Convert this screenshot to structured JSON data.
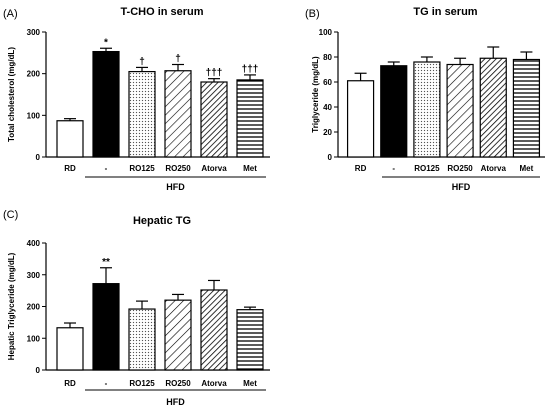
{
  "figure": {
    "group_label": "HFD"
  },
  "chart_data": [
    {
      "panel": "(A)",
      "type": "bar",
      "title": "T-CHO in serum",
      "xlabel": "",
      "ylabel": "Total cholesterol (mg/dL)",
      "categories": [
        "RD",
        "-",
        "RO125",
        "RO250",
        "Atorva",
        "Met"
      ],
      "values": [
        87,
        253,
        205,
        207,
        180,
        185
      ],
      "errors": [
        5,
        8,
        10,
        15,
        8,
        12
      ],
      "annotations": [
        "",
        "*",
        "†",
        "†",
        "†††",
        "†††"
      ],
      "ylim": [
        0,
        300
      ],
      "yticks": [
        0,
        100,
        200,
        300
      ],
      "patterns": [
        "white",
        "black",
        "dots",
        "diagonal",
        "hatch",
        "horizontal"
      ]
    },
    {
      "panel": "(B)",
      "type": "bar",
      "title": "TG in serum",
      "xlabel": "",
      "ylabel": "Triglyceride (mg/dL)",
      "categories": [
        "RD",
        "-",
        "RO125",
        "RO250",
        "Atorva",
        "Met"
      ],
      "values": [
        61,
        73,
        76,
        74,
        79,
        78
      ],
      "errors": [
        6,
        3,
        4,
        5,
        9,
        6
      ],
      "annotations": [
        "",
        "",
        "",
        "",
        "",
        ""
      ],
      "ylim": [
        0,
        100
      ],
      "yticks": [
        0,
        20,
        40,
        60,
        80,
        100
      ],
      "patterns": [
        "white",
        "black",
        "dots",
        "diagonal",
        "hatch",
        "horizontal"
      ]
    },
    {
      "panel": "(C)",
      "type": "bar",
      "title": "Hepatic TG",
      "xlabel": "",
      "ylabel": "Hepatic Triglyceride (mg/dL)",
      "categories": [
        "RD",
        "-",
        "RO125",
        "RO250",
        "Atorva",
        "Met"
      ],
      "values": [
        133,
        272,
        192,
        220,
        252,
        190
      ],
      "errors": [
        15,
        50,
        25,
        18,
        30,
        8
      ],
      "annotations": [
        "",
        "**",
        "",
        "",
        "",
        ""
      ],
      "ylim": [
        0,
        400
      ],
      "yticks": [
        0,
        100,
        200,
        300,
        400
      ],
      "patterns": [
        "white",
        "black",
        "dots",
        "diagonal",
        "hatch",
        "horizontal"
      ]
    }
  ]
}
